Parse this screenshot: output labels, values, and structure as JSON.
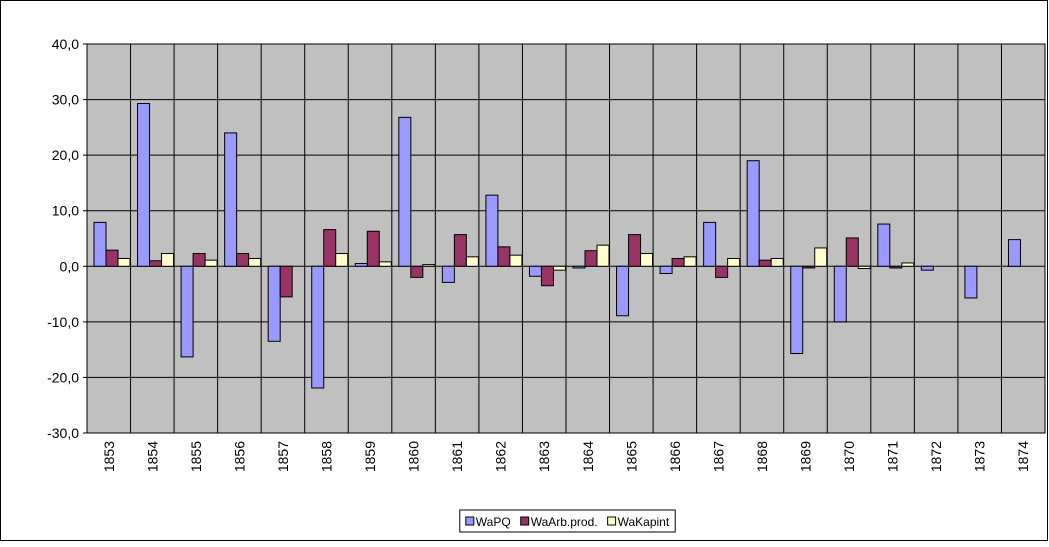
{
  "chart_data": {
    "type": "bar",
    "categories": [
      "1853",
      "1854",
      "1855",
      "1856",
      "1857",
      "1858",
      "1859",
      "1860",
      "1861",
      "1862",
      "1863",
      "1864",
      "1865",
      "1866",
      "1867",
      "1868",
      "1869",
      "1870",
      "1871",
      "1872",
      "1873",
      "1874"
    ],
    "series": [
      {
        "name": "WaPQ",
        "color": "#9999ff",
        "values": [
          7.9,
          29.3,
          -16.3,
          24.0,
          -13.5,
          -21.9,
          0.5,
          26.8,
          -2.9,
          12.8,
          -1.8,
          -0.3,
          -8.9,
          -1.3,
          7.9,
          19.0,
          -15.7,
          -10.0,
          7.6,
          -0.7,
          -5.7,
          4.8
        ]
      },
      {
        "name": "WaArb.prod.",
        "color": "#993366",
        "values": [
          2.9,
          1.0,
          2.3,
          2.3,
          -5.5,
          6.6,
          6.3,
          -2.0,
          5.7,
          3.5,
          -3.5,
          2.8,
          5.7,
          1.4,
          -2.0,
          1.1,
          -0.3,
          5.1,
          -0.3,
          null,
          null,
          null
        ]
      },
      {
        "name": "WaKapint",
        "color": "#ffffcc",
        "values": [
          1.4,
          2.3,
          1.1,
          1.4,
          null,
          2.3,
          0.8,
          0.3,
          1.7,
          2.0,
          -0.7,
          3.8,
          2.3,
          1.7,
          1.4,
          1.4,
          3.3,
          -0.4,
          0.6,
          null,
          null,
          null
        ]
      }
    ],
    "ylim": [
      -30,
      40
    ],
    "yticks": [
      {
        "value": -30,
        "label": "-30,0"
      },
      {
        "value": -20,
        "label": "-20,0"
      },
      {
        "value": -10,
        "label": "-10,0"
      },
      {
        "value": 0,
        "label": "0,0"
      },
      {
        "value": 10,
        "label": "10,0"
      },
      {
        "value": 20,
        "label": "20,0"
      },
      {
        "value": 30,
        "label": "30,0"
      },
      {
        "value": 40,
        "label": "40,0"
      }
    ],
    "grid": true,
    "legend": "bottom",
    "background": "#c0c0c0"
  }
}
